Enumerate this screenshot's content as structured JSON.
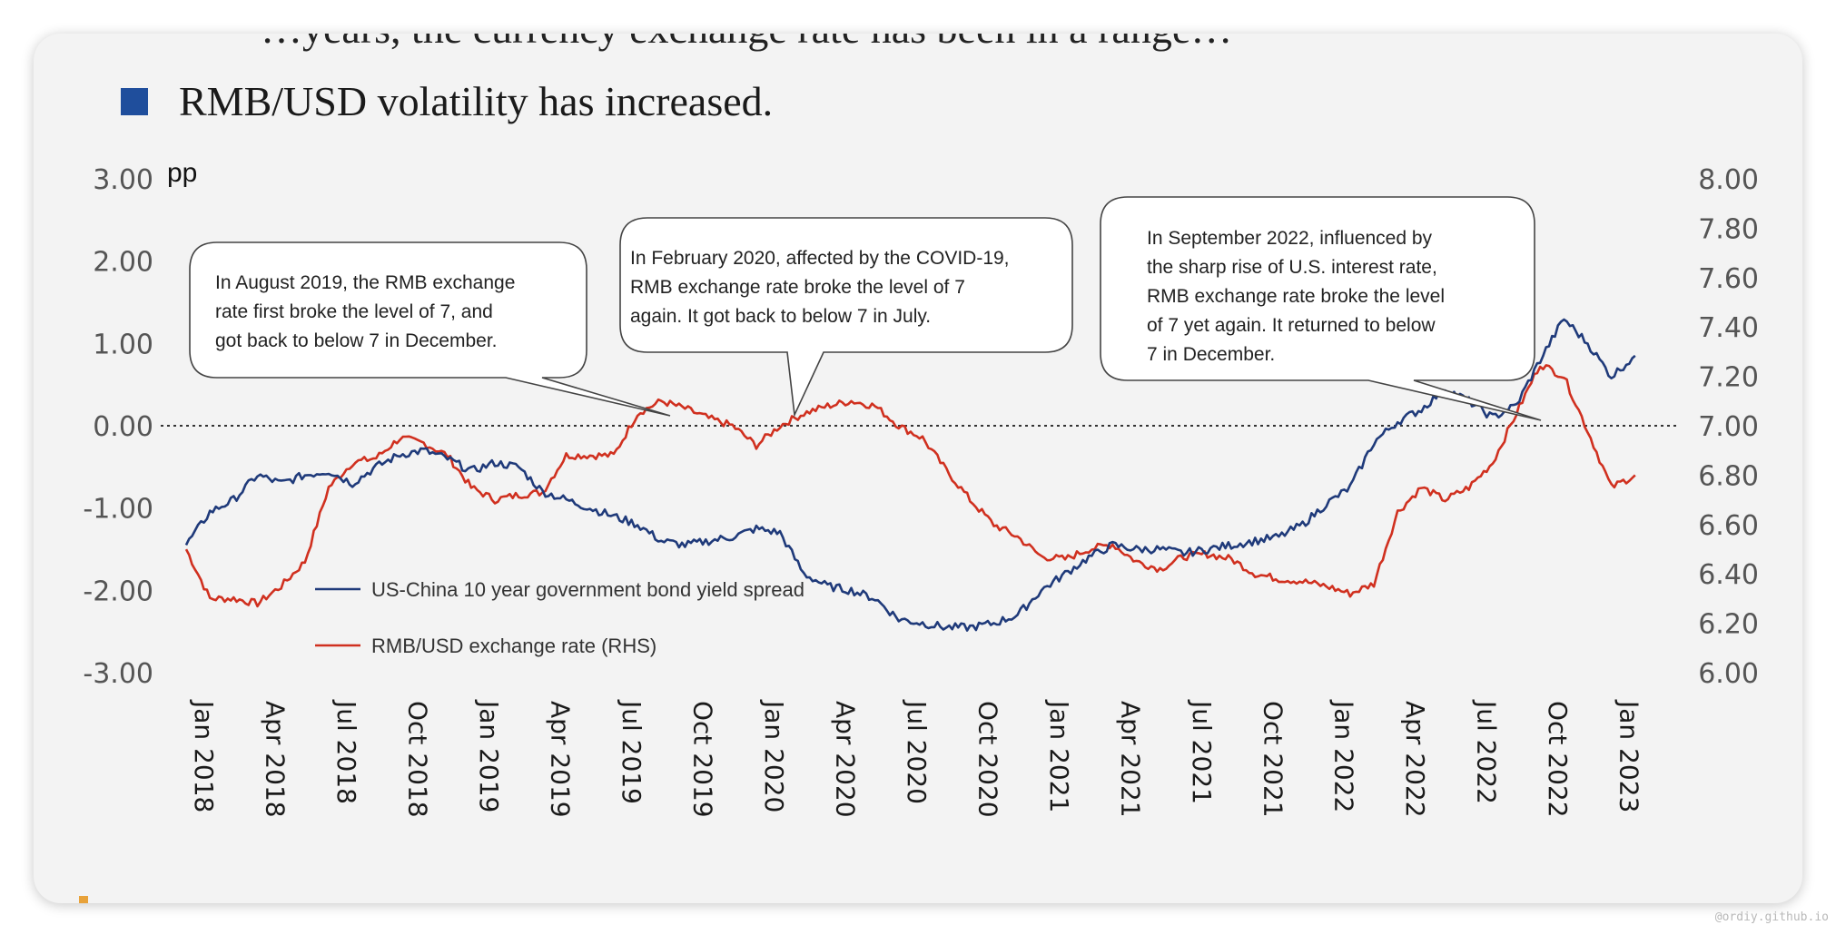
{
  "slide": {
    "title_fragment": "…years, the currency exchange rate has been in a range…",
    "bullet": "RMB/USD volatility has increased."
  },
  "colors": {
    "spread": "#1f3a7a",
    "rmb": "#d0301f",
    "bullet": "#1f4e9c"
  },
  "watermark": "@ordiy.github.io",
  "chart_data": {
    "type": "line",
    "ylabel_left": "pp",
    "y_left": {
      "min": -3,
      "max": 3,
      "ticks": [
        "3.00",
        "2.00",
        "1.00",
        "0.00",
        "-1.00",
        "-2.00",
        "-3.00"
      ]
    },
    "y_right": {
      "min": 6.0,
      "max": 8.0,
      "ticks": [
        "8.00",
        "7.80",
        "7.60",
        "7.40",
        "7.20",
        "7.00",
        "6.80",
        "6.60",
        "6.40",
        "6.20",
        "6.00"
      ]
    },
    "x_ticks": [
      "Jan 2018",
      "Apr 2018",
      "Jul 2018",
      "Oct 2018",
      "Jan 2019",
      "Apr 2019",
      "Jul 2019",
      "Oct 2019",
      "Jan 2020",
      "Apr 2020",
      "Jul 2020",
      "Oct 2020",
      "Jan 2021",
      "Apr 2021",
      "Jul 2021",
      "Oct 2021",
      "Jan 2022",
      "Apr 2022",
      "Jul 2022",
      "Oct 2022",
      "Jan 2023"
    ],
    "reference_line": {
      "axis": "left",
      "value": 0,
      "style": "dotted"
    },
    "series": [
      {
        "name": "US-China 10 year government bond yield spread",
        "axis": "left",
        "x": [
          "2018-01",
          "2018-02",
          "2018-03",
          "2018-04",
          "2018-05",
          "2018-06",
          "2018-07",
          "2018-08",
          "2018-09",
          "2018-10",
          "2018-11",
          "2018-12",
          "2019-01",
          "2019-02",
          "2019-03",
          "2019-04",
          "2019-05",
          "2019-06",
          "2019-07",
          "2019-08",
          "2019-09",
          "2019-10",
          "2019-11",
          "2019-12",
          "2020-01",
          "2020-02",
          "2020-03",
          "2020-04",
          "2020-05",
          "2020-06",
          "2020-07",
          "2020-08",
          "2020-09",
          "2020-10",
          "2020-11",
          "2020-12",
          "2021-01",
          "2021-02",
          "2021-03",
          "2021-04",
          "2021-05",
          "2021-06",
          "2021-07",
          "2021-08",
          "2021-09",
          "2021-10",
          "2021-11",
          "2021-12",
          "2022-01",
          "2022-02",
          "2022-03",
          "2022-04",
          "2022-05",
          "2022-06",
          "2022-07",
          "2022-08",
          "2022-09",
          "2022-10",
          "2022-11",
          "2022-12",
          "2023-01",
          "2023-02"
        ],
        "values": [
          -1.45,
          -1.05,
          -0.9,
          -0.6,
          -0.7,
          -0.6,
          -0.55,
          -0.7,
          -0.5,
          -0.35,
          -0.3,
          -0.4,
          -0.55,
          -0.45,
          -0.5,
          -0.8,
          -0.9,
          -1.0,
          -1.1,
          -1.2,
          -1.4,
          -1.45,
          -1.4,
          -1.35,
          -1.25,
          -1.3,
          -1.8,
          -1.95,
          -2.0,
          -2.1,
          -2.35,
          -2.4,
          -2.45,
          -2.45,
          -2.4,
          -2.3,
          -2.0,
          -1.8,
          -1.6,
          -1.45,
          -1.5,
          -1.5,
          -1.55,
          -1.5,
          -1.45,
          -1.4,
          -1.35,
          -1.2,
          -0.95,
          -0.75,
          -0.2,
          0.05,
          0.2,
          0.45,
          0.3,
          0.1,
          0.25,
          0.8,
          1.3,
          1.0,
          0.6,
          0.85
        ]
      },
      {
        "name": "RMB/USD exchange rate (RHS)",
        "axis": "right",
        "x": [
          "2018-01",
          "2018-02",
          "2018-03",
          "2018-04",
          "2018-05",
          "2018-06",
          "2018-07",
          "2018-08",
          "2018-09",
          "2018-10",
          "2018-11",
          "2018-12",
          "2019-01",
          "2019-02",
          "2019-03",
          "2019-04",
          "2019-05",
          "2019-06",
          "2019-07",
          "2019-08",
          "2019-09",
          "2019-10",
          "2019-11",
          "2019-12",
          "2020-01",
          "2020-02",
          "2020-03",
          "2020-04",
          "2020-05",
          "2020-06",
          "2020-07",
          "2020-08",
          "2020-09",
          "2020-10",
          "2020-11",
          "2020-12",
          "2021-01",
          "2021-02",
          "2021-03",
          "2021-04",
          "2021-05",
          "2021-06",
          "2021-07",
          "2021-08",
          "2021-09",
          "2021-10",
          "2021-11",
          "2021-12",
          "2022-01",
          "2022-02",
          "2022-03",
          "2022-04",
          "2022-05",
          "2022-06",
          "2022-07",
          "2022-08",
          "2022-09",
          "2022-10",
          "2022-11",
          "2022-12",
          "2023-01",
          "2023-02"
        ],
        "values": [
          6.5,
          6.3,
          6.3,
          6.28,
          6.35,
          6.45,
          6.75,
          6.85,
          6.87,
          6.95,
          6.93,
          6.88,
          6.75,
          6.7,
          6.72,
          6.73,
          6.88,
          6.88,
          6.88,
          7.05,
          7.1,
          7.07,
          7.03,
          7.0,
          6.92,
          7.0,
          7.05,
          7.08,
          7.1,
          7.08,
          7.0,
          6.95,
          6.82,
          6.7,
          6.6,
          6.55,
          6.47,
          6.46,
          6.5,
          6.52,
          6.45,
          6.42,
          6.47,
          6.48,
          6.46,
          6.4,
          6.38,
          6.37,
          6.35,
          6.32,
          6.36,
          6.65,
          6.75,
          6.7,
          6.75,
          6.85,
          7.05,
          7.25,
          7.2,
          6.98,
          6.75,
          6.8
        ]
      }
    ],
    "legend": "bottom-left",
    "annotations": [
      {
        "text": "In August 2019, the RMB exchange rate first broke the level of 7, and got back to below 7 in December."
      },
      {
        "text": "In February 2020, affected by the COVID-19, RMB exchange rate broke the level of 7 again. It got back to below 7 in July."
      },
      {
        "text": "In September 2022, influenced by the sharp rise of U.S. interest rate, RMB exchange rate broke the level of 7 yet again. It returned to below 7 in December."
      }
    ]
  }
}
